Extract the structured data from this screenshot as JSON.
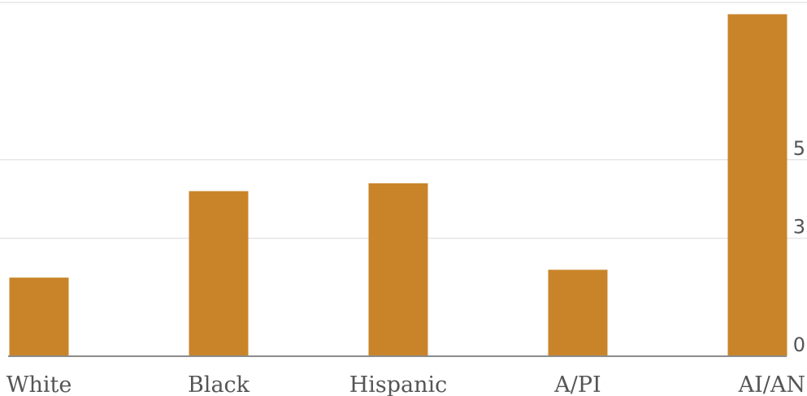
{
  "chart_data": {
    "type": "bar",
    "categories": [
      "White",
      "Black",
      "Hispanic",
      "A/PI",
      "AI/AN"
    ],
    "values": [
      2.0,
      4.2,
      4.4,
      2.2,
      8.7
    ],
    "ylim": [
      0,
      9
    ],
    "yticks": [
      0,
      3,
      5
    ],
    "grid": true,
    "colors": {
      "bar": "#c9842a",
      "grid": "#e6e6e6",
      "baseline": "#8c8c8c",
      "text": "#555555"
    }
  }
}
